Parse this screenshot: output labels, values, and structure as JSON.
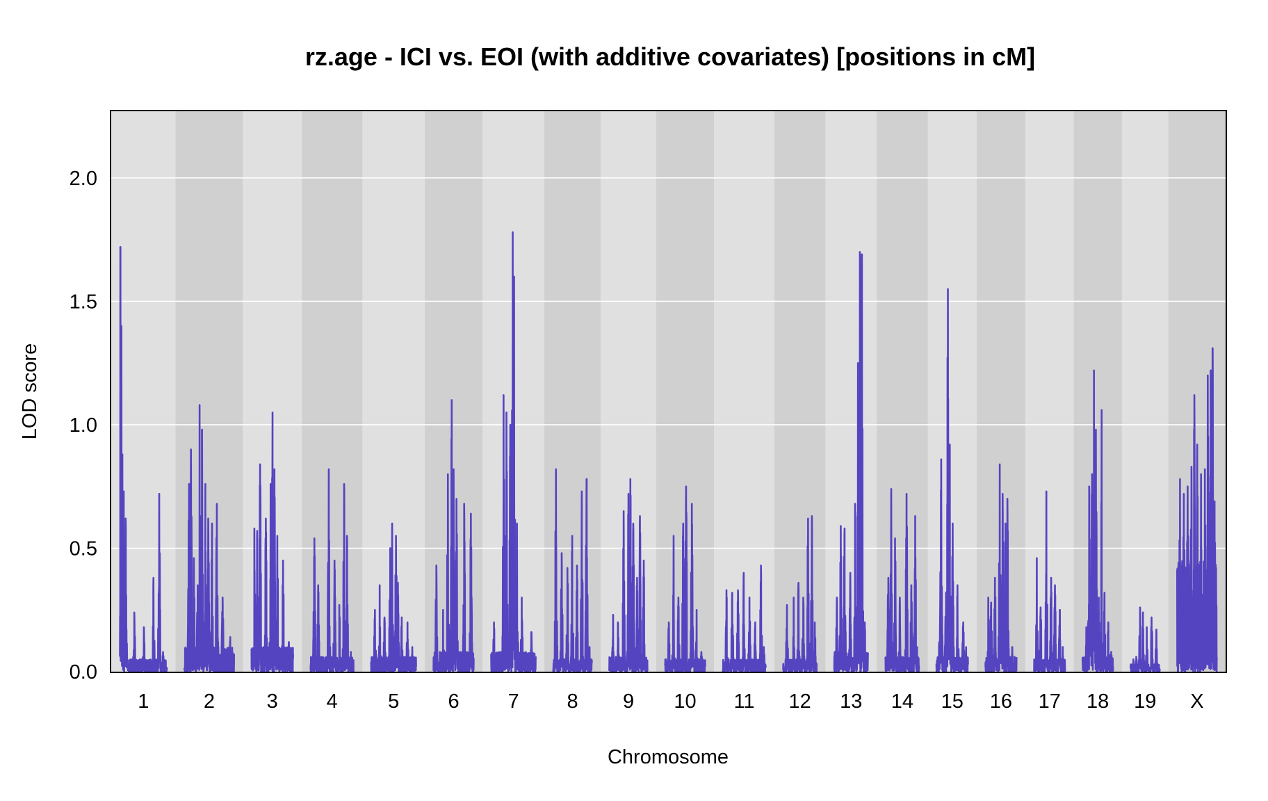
{
  "chart_data": {
    "type": "line",
    "title": "rz.age - ICI vs. EOI (with additive covariates) [positions in cM]",
    "xlabel": "Chromosome",
    "ylabel": "LOD score",
    "ylim": [
      0,
      2.27
    ],
    "yticks": [
      "0.0",
      "0.5",
      "1.0",
      "1.5",
      "2.0"
    ],
    "grid": true,
    "line_color": "#5544c0",
    "band_colors": [
      "#e0e0e0",
      "#d0d0d0"
    ],
    "chromosomes": [
      {
        "name": "1",
        "length": 98,
        "baseline": 0.05,
        "peaks": [
          [
            1,
            1.72
          ],
          [
            3,
            1.4
          ],
          [
            5,
            0.88
          ],
          [
            8,
            0.73
          ],
          [
            12,
            0.62
          ],
          [
            30,
            0.24
          ],
          [
            50,
            0.18
          ],
          [
            70,
            0.38
          ],
          [
            82,
            0.72
          ],
          [
            90,
            0.08
          ]
        ]
      },
      {
        "name": "2",
        "length": 104,
        "baseline": 0.1,
        "peaks": [
          [
            10,
            0.76
          ],
          [
            14,
            0.9
          ],
          [
            20,
            0.46
          ],
          [
            28,
            0.35
          ],
          [
            32,
            1.08
          ],
          [
            37,
            0.98
          ],
          [
            44,
            0.76
          ],
          [
            50,
            0.62
          ],
          [
            58,
            0.6
          ],
          [
            68,
            0.68
          ],
          [
            80,
            0.3
          ],
          [
            96,
            0.14
          ]
        ]
      },
      {
        "name": "3",
        "length": 87,
        "baseline": 0.1,
        "peaks": [
          [
            6,
            0.58
          ],
          [
            12,
            0.57
          ],
          [
            18,
            0.84
          ],
          [
            30,
            0.62
          ],
          [
            40,
            0.76
          ],
          [
            44,
            1.05
          ],
          [
            48,
            0.82
          ],
          [
            54,
            0.55
          ],
          [
            66,
            0.45
          ],
          [
            78,
            0.12
          ]
        ]
      },
      {
        "name": "4",
        "length": 90,
        "baseline": 0.06,
        "peaks": [
          [
            8,
            0.54
          ],
          [
            16,
            0.35
          ],
          [
            38,
            0.82
          ],
          [
            50,
            0.45
          ],
          [
            60,
            0.27
          ],
          [
            70,
            0.76
          ],
          [
            76,
            0.55
          ],
          [
            84,
            0.08
          ]
        ]
      },
      {
        "name": "5",
        "length": 94,
        "baseline": 0.06,
        "peaks": [
          [
            8,
            0.25
          ],
          [
            18,
            0.35
          ],
          [
            28,
            0.22
          ],
          [
            40,
            0.5
          ],
          [
            44,
            0.6
          ],
          [
            52,
            0.55
          ],
          [
            56,
            0.36
          ],
          [
            64,
            0.22
          ],
          [
            76,
            0.2
          ],
          [
            86,
            0.1
          ]
        ]
      },
      {
        "name": "6",
        "length": 84,
        "baseline": 0.08,
        "peaks": [
          [
            6,
            0.43
          ],
          [
            20,
            0.25
          ],
          [
            30,
            0.8
          ],
          [
            38,
            1.1
          ],
          [
            42,
            0.82
          ],
          [
            48,
            0.7
          ],
          [
            64,
            0.68
          ],
          [
            78,
            0.64
          ]
        ]
      },
      {
        "name": "7",
        "length": 93,
        "baseline": 0.08,
        "peaks": [
          [
            6,
            0.2
          ],
          [
            26,
            1.12
          ],
          [
            32,
            1.05
          ],
          [
            40,
            1.0
          ],
          [
            45,
            1.78
          ],
          [
            48,
            1.6
          ],
          [
            54,
            0.6
          ],
          [
            64,
            0.3
          ],
          [
            84,
            0.16
          ]
        ]
      },
      {
        "name": "8",
        "length": 81,
        "baseline": 0.05,
        "peaks": [
          [
            6,
            0.82
          ],
          [
            18,
            0.48
          ],
          [
            30,
            0.42
          ],
          [
            40,
            0.55
          ],
          [
            50,
            0.43
          ],
          [
            60,
            0.73
          ],
          [
            70,
            0.78
          ],
          [
            76,
            0.1
          ]
        ]
      },
      {
        "name": "9",
        "length": 80,
        "baseline": 0.06,
        "peaks": [
          [
            8,
            0.23
          ],
          [
            18,
            0.2
          ],
          [
            30,
            0.65
          ],
          [
            40,
            0.72
          ],
          [
            44,
            0.78
          ],
          [
            50,
            0.6
          ],
          [
            58,
            0.38
          ],
          [
            64,
            0.63
          ],
          [
            72,
            0.45
          ]
        ]
      },
      {
        "name": "10",
        "length": 84,
        "baseline": 0.05,
        "peaks": [
          [
            8,
            0.2
          ],
          [
            18,
            0.55
          ],
          [
            28,
            0.3
          ],
          [
            38,
            0.6
          ],
          [
            44,
            0.75
          ],
          [
            56,
            0.68
          ],
          [
            66,
            0.25
          ],
          [
            76,
            0.08
          ]
        ]
      },
      {
        "name": "11",
        "length": 90,
        "baseline": 0.05,
        "peaks": [
          [
            8,
            0.33
          ],
          [
            20,
            0.32
          ],
          [
            32,
            0.33
          ],
          [
            44,
            0.4
          ],
          [
            56,
            0.3
          ],
          [
            68,
            0.2
          ],
          [
            80,
            0.43
          ],
          [
            86,
            0.1
          ]
        ]
      },
      {
        "name": "12",
        "length": 70,
        "baseline": 0.05,
        "peaks": [
          [
            8,
            0.27
          ],
          [
            22,
            0.3
          ],
          [
            32,
            0.36
          ],
          [
            42,
            0.3
          ],
          [
            52,
            0.62
          ],
          [
            60,
            0.63
          ],
          [
            66,
            0.2
          ]
        ]
      },
      {
        "name": "13",
        "length": 71,
        "baseline": 0.08,
        "peaks": [
          [
            6,
            0.3
          ],
          [
            14,
            0.59
          ],
          [
            22,
            0.58
          ],
          [
            34,
            0.4
          ],
          [
            44,
            0.68
          ],
          [
            50,
            1.25
          ],
          [
            54,
            1.7
          ],
          [
            58,
            1.69
          ],
          [
            64,
            0.2
          ]
        ]
      },
      {
        "name": "14",
        "length": 70,
        "baseline": 0.06,
        "peaks": [
          [
            6,
            0.38
          ],
          [
            12,
            0.74
          ],
          [
            20,
            0.54
          ],
          [
            30,
            0.3
          ],
          [
            44,
            0.72
          ],
          [
            54,
            0.35
          ],
          [
            62,
            0.63
          ],
          [
            66,
            0.1
          ]
        ]
      },
      {
        "name": "15",
        "length": 66,
        "baseline": 0.06,
        "peaks": [
          [
            6,
            0.12
          ],
          [
            10,
            0.86
          ],
          [
            20,
            0.32
          ],
          [
            24,
            1.55
          ],
          [
            28,
            0.92
          ],
          [
            34,
            0.6
          ],
          [
            44,
            0.35
          ],
          [
            56,
            0.2
          ],
          [
            62,
            0.1
          ]
        ]
      },
      {
        "name": "16",
        "length": 65,
        "baseline": 0.06,
        "peaks": [
          [
            6,
            0.3
          ],
          [
            12,
            0.28
          ],
          [
            20,
            0.38
          ],
          [
            30,
            0.84
          ],
          [
            36,
            0.72
          ],
          [
            42,
            0.6
          ],
          [
            46,
            0.7
          ],
          [
            56,
            0.1
          ]
        ]
      },
      {
        "name": "17",
        "length": 65,
        "baseline": 0.05,
        "peaks": [
          [
            6,
            0.46
          ],
          [
            14,
            0.26
          ],
          [
            26,
            0.73
          ],
          [
            36,
            0.38
          ],
          [
            44,
            0.35
          ],
          [
            54,
            0.25
          ],
          [
            60,
            0.1
          ]
        ]
      },
      {
        "name": "18",
        "length": 64,
        "baseline": 0.06,
        "peaks": [
          [
            8,
            0.18
          ],
          [
            14,
            0.75
          ],
          [
            20,
            0.8
          ],
          [
            24,
            1.22
          ],
          [
            28,
            0.98
          ],
          [
            34,
            0.3
          ],
          [
            40,
            1.06
          ],
          [
            46,
            0.32
          ],
          [
            54,
            0.2
          ],
          [
            60,
            0.08
          ]
        ]
      },
      {
        "name": "19",
        "length": 61,
        "baseline": 0.03,
        "peaks": [
          [
            6,
            0.05
          ],
          [
            12,
            0.06
          ],
          [
            20,
            0.26
          ],
          [
            26,
            0.24
          ],
          [
            34,
            0.18
          ],
          [
            44,
            0.22
          ],
          [
            54,
            0.17
          ]
        ]
      },
      {
        "name": "X",
        "length": 83,
        "baseline": 0.45,
        "peaks": [
          [
            6,
            0.78
          ],
          [
            14,
            0.72
          ],
          [
            22,
            0.75
          ],
          [
            30,
            0.83
          ],
          [
            36,
            1.12
          ],
          [
            42,
            0.92
          ],
          [
            50,
            0.8
          ],
          [
            58,
            0.82
          ],
          [
            64,
            1.2
          ],
          [
            70,
            1.22
          ],
          [
            74,
            1.31
          ],
          [
            78,
            0.69
          ]
        ]
      }
    ]
  }
}
